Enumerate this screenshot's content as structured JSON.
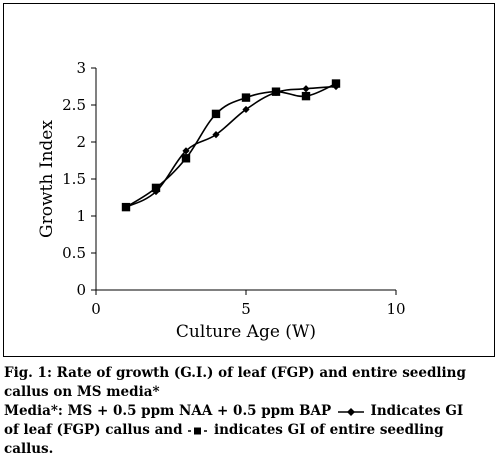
{
  "caption": {
    "line1": "Fig. 1: Rate of growth (G.I.) of leaf (FGP) and entire seedling",
    "line2": "callus on MS media*",
    "line3_pre": "Media*: MS + 0.5 ppm NAA + 0.5 ppm BAP",
    "line3_post": "Indicates GI",
    "line4_pre": "of leaf (FGP) callus and",
    "line4_post": "indicates GI of entire seedling",
    "line5": "callus."
  },
  "chart_data": {
    "type": "line",
    "title": "",
    "xlabel": "Culture Age (W)",
    "ylabel": "Growth Index",
    "xlim": [
      0,
      10
    ],
    "ylim": [
      0,
      3
    ],
    "x_ticks": [
      "0",
      "5",
      "10"
    ],
    "y_ticks": [
      "0",
      "0.5",
      "1",
      "1.5",
      "2",
      "2.5",
      "3"
    ],
    "grid": false,
    "series": [
      {
        "marker": "diamond",
        "x": [
          1,
          2,
          3,
          4,
          5,
          6,
          7,
          8
        ],
        "y": [
          1.12,
          1.33,
          1.88,
          2.1,
          2.44,
          2.67,
          2.72,
          2.75
        ]
      },
      {
        "marker": "square",
        "x": [
          1,
          2,
          3,
          4,
          5,
          6,
          7,
          8
        ],
        "y": [
          1.12,
          1.38,
          1.78,
          2.38,
          2.6,
          2.68,
          2.62,
          2.79
        ]
      }
    ]
  }
}
